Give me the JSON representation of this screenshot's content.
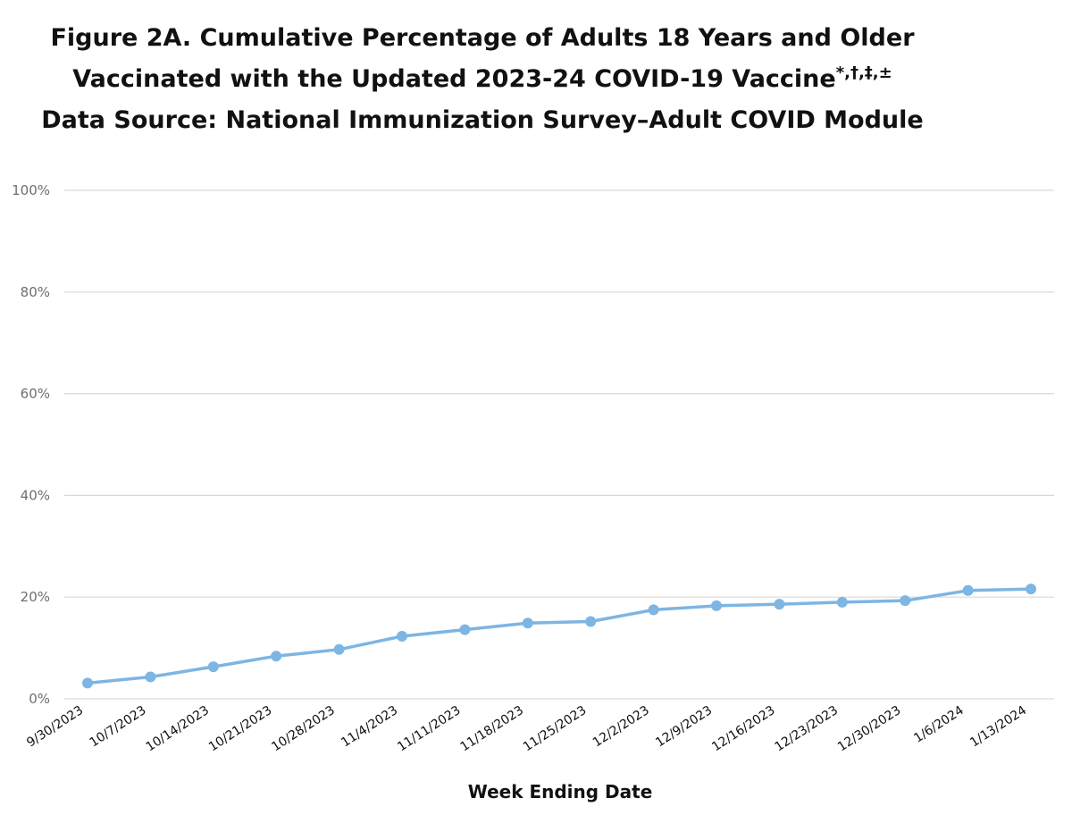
{
  "title": {
    "line1": "Figure 2A. Cumulative Percentage of Adults 18 Years and Older",
    "line2_main": "Vaccinated with the Updated 2023-24 COVID-19 Vaccine",
    "line2_sup": "*,†,‡,±",
    "line3": "Data Source: National Immunization Survey–Adult COVID Module"
  },
  "chart_data": {
    "type": "line",
    "title": "Figure 2A. Cumulative Percentage of Adults 18 Years and Older Vaccinated with the Updated 2023-24 COVID-19 Vaccine",
    "subtitle": "Data Source: National Immunization Survey–Adult COVID Module",
    "xlabel": "Week Ending Date",
    "ylabel": "",
    "ylim": [
      0,
      100
    ],
    "yticks": [
      0,
      20,
      40,
      60,
      80,
      100
    ],
    "ytick_labels": [
      "0%",
      "20%",
      "40%",
      "60%",
      "80%",
      "100%"
    ],
    "grid": true,
    "categories": [
      "9/30/2023",
      "10/7/2023",
      "10/14/2023",
      "10/21/2023",
      "10/28/2023",
      "11/4/2023",
      "11/11/2023",
      "11/18/2023",
      "11/25/2023",
      "12/2/2023",
      "12/9/2023",
      "12/16/2023",
      "12/23/2023",
      "12/30/2023",
      "1/6/2024",
      "1/13/2024"
    ],
    "series": [
      {
        "values": [
          3.1,
          4.3,
          6.3,
          8.4,
          9.7,
          12.3,
          13.6,
          14.9,
          15.2,
          17.5,
          18.3,
          18.6,
          19.0,
          19.3,
          21.3,
          21.6
        ]
      }
    ],
    "colors": {
      "line": "#7db5e3",
      "grid": "#d9d9d9",
      "axis": "#d9d9d9"
    }
  }
}
